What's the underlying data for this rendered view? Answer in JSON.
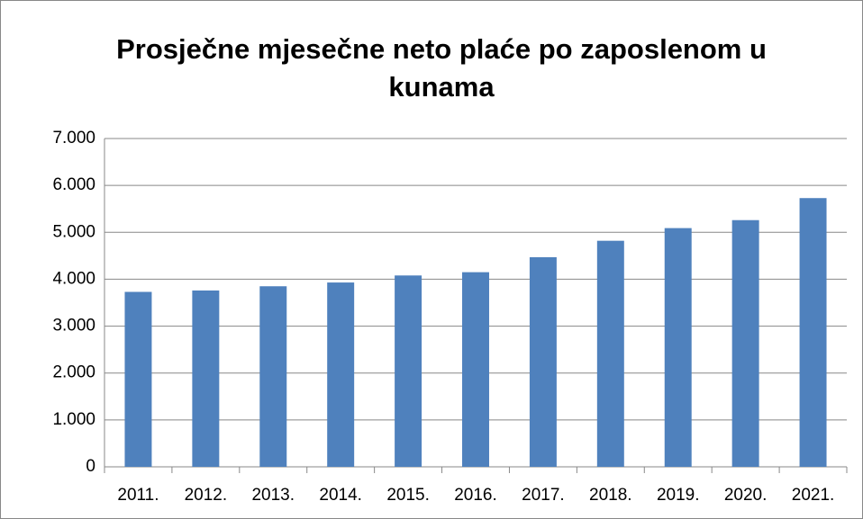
{
  "chart_data": {
    "type": "bar",
    "title": "Prosječne mjesečne neto plaće po zaposlenom u kunama",
    "categories": [
      "2011.",
      "2012.",
      "2013.",
      "2014.",
      "2015.",
      "2016.",
      "2017.",
      "2018.",
      "2019.",
      "2020.",
      "2021."
    ],
    "values": [
      3730,
      3760,
      3850,
      3930,
      4080,
      4150,
      4470,
      4820,
      5090,
      5260,
      5730
    ],
    "color": "#4f81bd",
    "ylim": [
      0,
      7000
    ],
    "yticks": [
      0,
      {
        "value": 1000,
        "label": "1.000"
      },
      {
        "value": 2000,
        "label": "2.000"
      },
      {
        "value": 3000,
        "label": "3.000"
      },
      {
        "value": 4000,
        "label": "4.000"
      },
      {
        "value": 5000,
        "label": "5.000"
      },
      {
        "value": 6000,
        "label": "6.000"
      },
      {
        "value": 7000,
        "label": "7.000"
      }
    ],
    "grid": true
  }
}
